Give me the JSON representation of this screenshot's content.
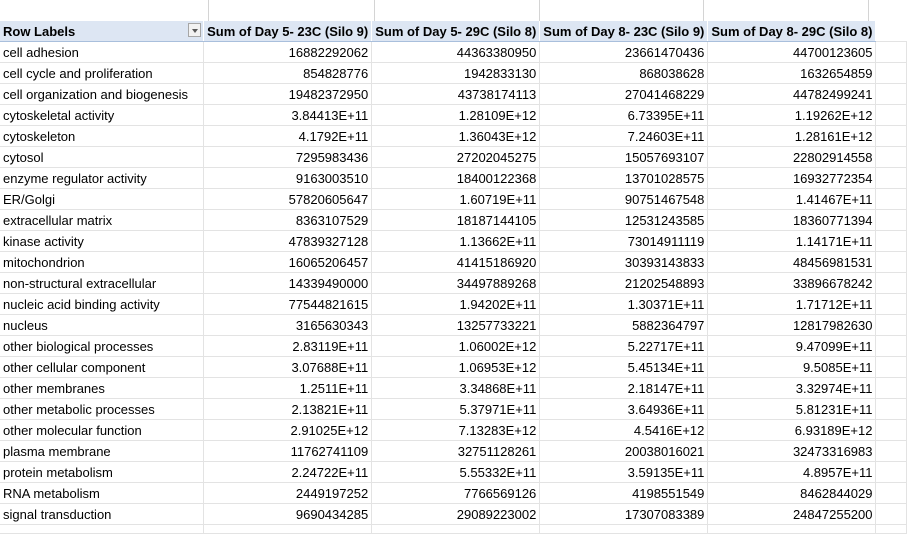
{
  "pivot": {
    "row_labels_header": "Row Labels",
    "column_headers": [
      "Sum of Day 5- 23C (Silo 9)",
      "Sum of Day 5- 29C (Silo 8)",
      "Sum of Day 8- 23C (Silo 9)",
      "Sum of Day 8- 29C (Silo 8)"
    ],
    "rows": [
      {
        "label": "cell adhesion",
        "values": [
          "16882292062",
          "44363380950",
          "23661470436",
          "44700123605"
        ]
      },
      {
        "label": "cell cycle and proliferation",
        "values": [
          "854828776",
          "1942833130",
          "868038628",
          "1632654859"
        ]
      },
      {
        "label": "cell organization and biogenesis",
        "values": [
          "19482372950",
          "43738174113",
          "27041468229",
          "44782499241"
        ]
      },
      {
        "label": "cytoskeletal activity",
        "values": [
          "3.84413E+11",
          "1.28109E+12",
          "6.73395E+11",
          "1.19262E+12"
        ]
      },
      {
        "label": "cytoskeleton",
        "values": [
          "4.1792E+11",
          "1.36043E+12",
          "7.24603E+11",
          "1.28161E+12"
        ]
      },
      {
        "label": "cytosol",
        "values": [
          "7295983436",
          "27202045275",
          "15057693107",
          "22802914558"
        ]
      },
      {
        "label": "enzyme regulator activity",
        "values": [
          "9163003510",
          "18400122368",
          "13701028575",
          "16932772354"
        ]
      },
      {
        "label": "ER/Golgi",
        "values": [
          "57820605647",
          "1.60719E+11",
          "90751467548",
          "1.41467E+11"
        ]
      },
      {
        "label": "extracellular matrix",
        "values": [
          "8363107529",
          "18187144105",
          "12531243585",
          "18360771394"
        ]
      },
      {
        "label": "kinase activity",
        "values": [
          "47839327128",
          "1.13662E+11",
          "73014911119",
          "1.14171E+11"
        ]
      },
      {
        "label": "mitochondrion",
        "values": [
          "16065206457",
          "41415186920",
          "30393143833",
          "48456981531"
        ]
      },
      {
        "label": "non-structural extracellular",
        "values": [
          "14339490000",
          "34497889268",
          "21202548893",
          "33896678242"
        ]
      },
      {
        "label": "nucleic acid binding activity",
        "values": [
          "77544821615",
          "1.94202E+11",
          "1.30371E+11",
          "1.71712E+11"
        ]
      },
      {
        "label": "nucleus",
        "values": [
          "3165630343",
          "13257733221",
          "5882364797",
          "12817982630"
        ]
      },
      {
        "label": "other biological processes",
        "values": [
          "2.83119E+11",
          "1.06002E+12",
          "5.22717E+11",
          "9.47099E+11"
        ]
      },
      {
        "label": "other cellular component",
        "values": [
          "3.07688E+11",
          "1.06953E+12",
          "5.45134E+11",
          "9.5085E+11"
        ]
      },
      {
        "label": "other membranes",
        "values": [
          "1.2511E+11",
          "3.34868E+11",
          "2.18147E+11",
          "3.32974E+11"
        ]
      },
      {
        "label": "other metabolic processes",
        "values": [
          "2.13821E+11",
          "5.37971E+11",
          "3.64936E+11",
          "5.81231E+11"
        ]
      },
      {
        "label": "other molecular function",
        "values": [
          "2.91025E+12",
          "7.13283E+12",
          "4.5416E+12",
          "6.93189E+12"
        ]
      },
      {
        "label": "plasma membrane",
        "values": [
          "11762741109",
          "32751128261",
          "20038016021",
          "32473316983"
        ]
      },
      {
        "label": "protein metabolism",
        "values": [
          "2.24722E+11",
          "5.55332E+11",
          "3.59135E+11",
          "4.8957E+11"
        ]
      },
      {
        "label": "RNA metabolism",
        "values": [
          "2449197252",
          "7766569126",
          "4198551549",
          "8462844029"
        ]
      },
      {
        "label": "signal transduction",
        "values": [
          "9690434285",
          "29089223002",
          "17307083389",
          "24847255200"
        ]
      }
    ]
  }
}
